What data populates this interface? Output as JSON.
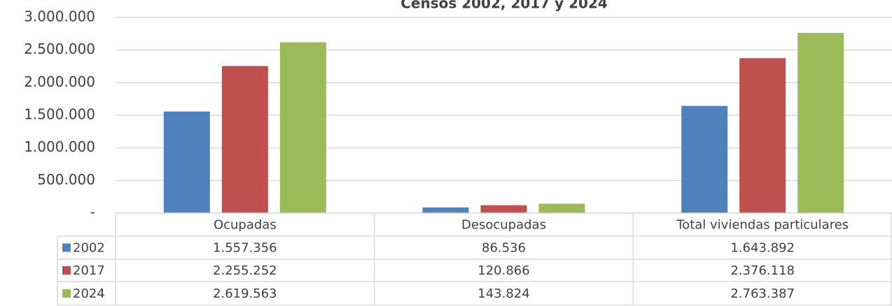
{
  "chart_data": {
    "type": "bar",
    "title": "Censos 2002, 2017 y 2024",
    "categories": [
      "Ocupadas",
      "Desocupadas",
      "Total viviendas particulares"
    ],
    "series": [
      {
        "name": "2002",
        "color": "#4f81bd",
        "values": [
          1557356,
          86536,
          1643892
        ],
        "value_labels": [
          "1.557.356",
          "86.536",
          "1.643.892"
        ]
      },
      {
        "name": "2017",
        "color": "#c0504d",
        "values": [
          2255252,
          120866,
          2376118
        ],
        "value_labels": [
          "2.255.252",
          "120.866",
          "2.376.118"
        ]
      },
      {
        "name": "2024",
        "color": "#9bbb59",
        "values": [
          2619563,
          143824,
          2763387
        ],
        "value_labels": [
          "2.619.563",
          "143.824",
          "2.763.387"
        ]
      }
    ],
    "ylim": [
      0,
      3000000
    ],
    "yticks": [
      {
        "value": 0,
        "label": "-"
      },
      {
        "value": 500000,
        "label": "500.000"
      },
      {
        "value": 1000000,
        "label": "1.000.000"
      },
      {
        "value": 1500000,
        "label": "1.500.000"
      },
      {
        "value": 2000000,
        "label": "2.000.000"
      },
      {
        "value": 2500000,
        "label": "2.500.000"
      },
      {
        "value": 3000000,
        "label": "3.000.000"
      }
    ],
    "grid": true
  }
}
